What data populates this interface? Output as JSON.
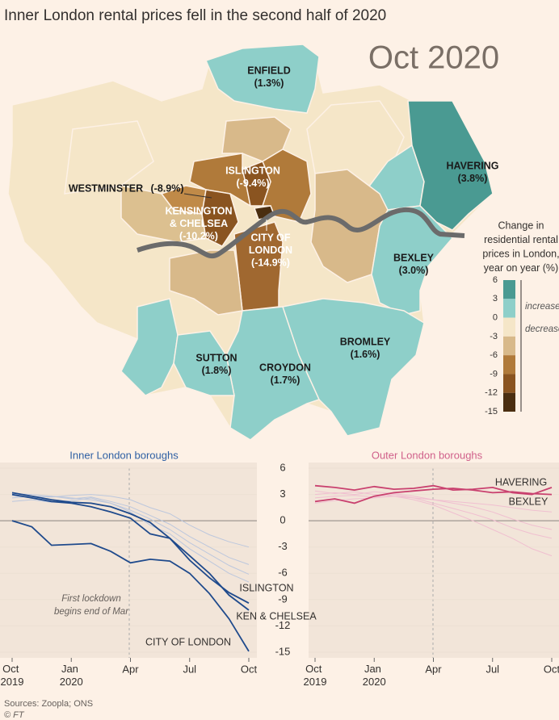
{
  "title": "Inner London rental prices fell in the second half of 2020",
  "map": {
    "date_label": "Oct 2020",
    "regions": [
      {
        "label_lines": [
          "ENFIELD"
        ],
        "value": 1.3,
        "value_label": "(1.3%)",
        "color": "#8ecfc9"
      },
      {
        "label_lines": [
          "HAVERING"
        ],
        "value": 3.8,
        "value_label": "(3.8%)",
        "color": "#4a9a92"
      },
      {
        "label_lines": [
          "BEXLEY"
        ],
        "value": 3.0,
        "value_label": "(3.0%)",
        "color": "#8ecfc9"
      },
      {
        "label_lines": [
          "BROMLEY"
        ],
        "value": 1.6,
        "value_label": "(1.6%)",
        "color": "#8ecfc9"
      },
      {
        "label_lines": [
          "CROYDON"
        ],
        "value": 1.7,
        "value_label": "(1.7%)",
        "color": "#8ecfc9"
      },
      {
        "label_lines": [
          "SUTTON"
        ],
        "value": 1.8,
        "value_label": "(1.8%)",
        "color": "#8ecfc9"
      },
      {
        "label_lines": [
          "WESTMINSTER"
        ],
        "value": -8.9,
        "value_label": "(-8.9%)",
        "color": "#c08a48"
      },
      {
        "label_lines": [
          "ISLINGTON"
        ],
        "value": -9.4,
        "value_label": "(-9.4%)",
        "color": "#8a5420"
      },
      {
        "label_lines": [
          "KENSINGTON",
          "& CHELSEA"
        ],
        "value": -10.2,
        "value_label": "(-10.2%)",
        "color": "#8a5420"
      },
      {
        "label_lines": [
          "CITY OF",
          "LONDON"
        ],
        "value": -14.9,
        "value_label": "(-14.9%)",
        "color": "#4a2e10"
      }
    ],
    "legend": {
      "title_lines": [
        "Change in",
        "residential rental",
        "prices in London,",
        "year on year (%)"
      ],
      "ticks": [
        6,
        3,
        0,
        -3,
        -6,
        -9,
        -12,
        -15
      ],
      "colors": [
        "#4a9a92",
        "#8ecfc9",
        "#f5e6c8",
        "#d8b98a",
        "#b07a3a",
        "#8a5420",
        "#4a2e10"
      ],
      "increase_label": "increase",
      "decrease_label": "decrease"
    }
  },
  "chart_data": [
    {
      "type": "line",
      "title": "Inner London boroughs",
      "title_color": "#2e5fa3",
      "categories": [
        "Oct 2019",
        null,
        null,
        "Jan 2020",
        null,
        null,
        "Apr",
        null,
        null,
        "Jul",
        null,
        null,
        "Oct"
      ],
      "ylim": [
        -15,
        6
      ],
      "yticks": [
        6,
        3,
        0,
        -3,
        -6,
        -9,
        -12,
        -15
      ],
      "annotation_lines": [
        "First lockdown",
        "begins end of Mar"
      ],
      "series": [
        {
          "color": "#bcc7dd",
          "values": [
            2.6,
            2.8,
            2.7,
            2.9,
            3.0,
            2.8,
            2.4,
            1.5,
            0.8,
            -0.5,
            -1.6,
            -2.4,
            -3.0
          ]
        },
        {
          "color": "#bcc7dd",
          "values": [
            2.9,
            2.6,
            2.8,
            2.5,
            2.7,
            2.2,
            1.6,
            0.6,
            -0.4,
            -1.8,
            -3.0,
            -4.2,
            -5.0
          ]
        },
        {
          "color": "#bcc7dd",
          "values": [
            2.2,
            2.4,
            2.1,
            2.3,
            2.6,
            2.0,
            1.2,
            0.2,
            -1.0,
            -2.5,
            -3.8,
            -5.1,
            -6.1
          ]
        },
        {
          "color": "#bcc7dd",
          "values": [
            3.1,
            3.0,
            2.8,
            2.6,
            2.4,
            2.0,
            1.0,
            -0.5,
            -1.5,
            -3.2,
            -4.6,
            -6.0,
            -7.0
          ]
        },
        {
          "name": "CITY OF LONDON",
          "color": "#1f4a8c",
          "values": [
            0,
            -0.7,
            -2.8,
            -2.7,
            -2.6,
            -3.5,
            -4.8,
            -4.4,
            -4.6,
            -6.0,
            -8.3,
            -11.2,
            -14.9
          ]
        },
        {
          "name": "KEN & CHELSEA",
          "color": "#1f4a8c",
          "values": [
            3.0,
            2.6,
            2.2,
            2.0,
            1.6,
            1.0,
            0.3,
            -1.5,
            -2.0,
            -4.0,
            -6.0,
            -8.5,
            -10.2
          ]
        },
        {
          "name": "ISLINGTON",
          "color": "#1f4a8c",
          "values": [
            3.2,
            2.8,
            2.4,
            2.1,
            2.0,
            1.6,
            0.8,
            -0.2,
            -2.0,
            -4.5,
            -6.5,
            -8.2,
            -9.4
          ]
        }
      ]
    },
    {
      "type": "line",
      "title": "Outer London boroughs",
      "title_color": "#d0608a",
      "categories": [
        "Oct 2019",
        null,
        null,
        "Jan 2020",
        null,
        null,
        "Apr",
        null,
        null,
        "Jul",
        null,
        null,
        "Oct"
      ],
      "ylim": [
        -15,
        6
      ],
      "yticks": [
        6,
        3,
        0,
        -3,
        -6,
        -9,
        -12,
        -15
      ],
      "series": [
        {
          "color": "#f0bfd0",
          "values": [
            3.0,
            3.2,
            3.0,
            3.3,
            3.1,
            2.8,
            2.4,
            2.0,
            1.6,
            1.0,
            0.2,
            -0.5,
            -1.0
          ]
        },
        {
          "color": "#f0bfd0",
          "values": [
            2.6,
            2.8,
            2.9,
            2.7,
            3.0,
            2.6,
            2.0,
            1.4,
            0.8,
            0.1,
            -0.8,
            -1.5,
            -2.0
          ]
        },
        {
          "color": "#f0bfd0",
          "values": [
            3.4,
            3.1,
            3.3,
            3.0,
            2.8,
            2.4,
            1.8,
            0.9,
            0.0,
            -1.0,
            -2.0,
            -3.2,
            -4.0
          ]
        },
        {
          "color": "#f0bfd0",
          "values": [
            2.0,
            2.3,
            2.5,
            2.6,
            2.8,
            2.6,
            2.4,
            2.2,
            2.0,
            1.8,
            1.5,
            1.2,
            1.0
          ]
        },
        {
          "name": "HAVERING",
          "color": "#c9416f",
          "values": [
            4.0,
            3.8,
            3.5,
            3.9,
            3.6,
            3.7,
            4.0,
            3.5,
            3.6,
            3.8,
            3.2,
            3.0,
            3.8
          ]
        },
        {
          "name": "BEXLEY",
          "color": "#c9416f",
          "values": [
            2.2,
            2.5,
            2.0,
            2.8,
            3.2,
            3.4,
            3.6,
            3.7,
            3.5,
            3.2,
            3.3,
            3.1,
            3.0
          ]
        }
      ]
    }
  ],
  "source": "Sources: Zoopla; ONS",
  "credit": "© FT"
}
